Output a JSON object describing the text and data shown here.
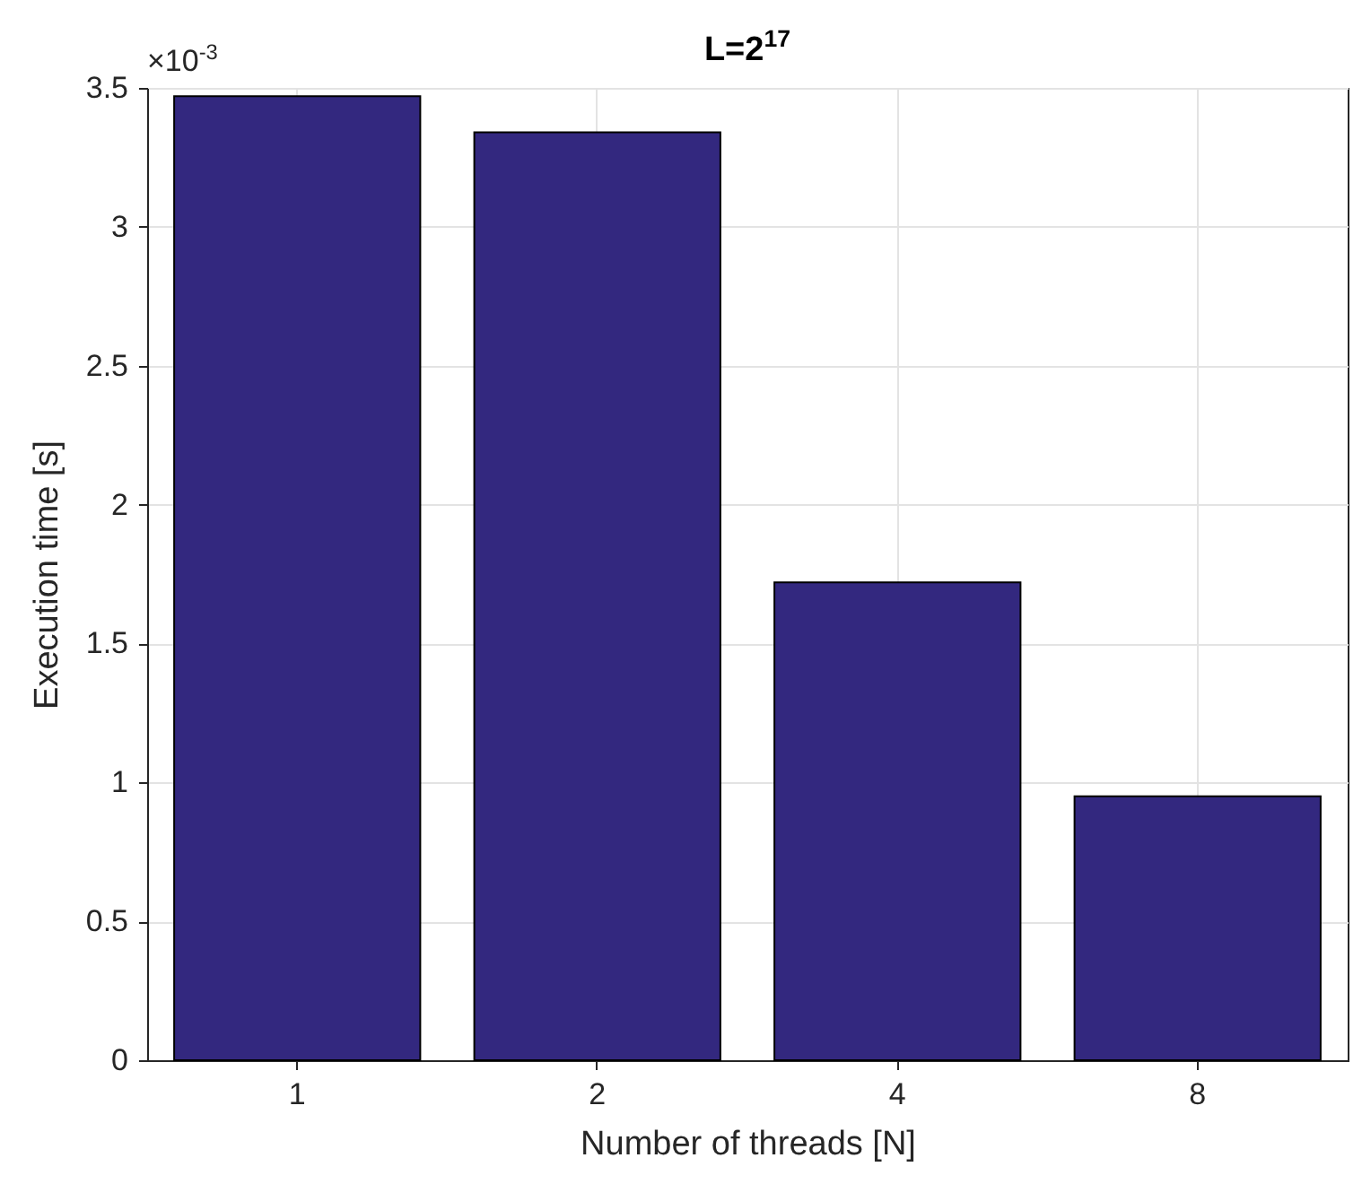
{
  "chart_data": {
    "type": "bar",
    "title": "L=2$^{17}$",
    "xlabel": "Number of threads [N]",
    "ylabel": "Execution time [s]",
    "annotations": [
      "×10$^{-3}$"
    ],
    "categories": [
      "1",
      "2",
      "4",
      "8"
    ],
    "values": [
      3.47,
      3.34,
      1.72,
      0.95
    ],
    "color": "#33287f",
    "ylim": [
      0,
      3.5
    ],
    "yticks": [
      0,
      0.5,
      1,
      1.5,
      2,
      2.5,
      3,
      3.5
    ],
    "grid": true
  }
}
